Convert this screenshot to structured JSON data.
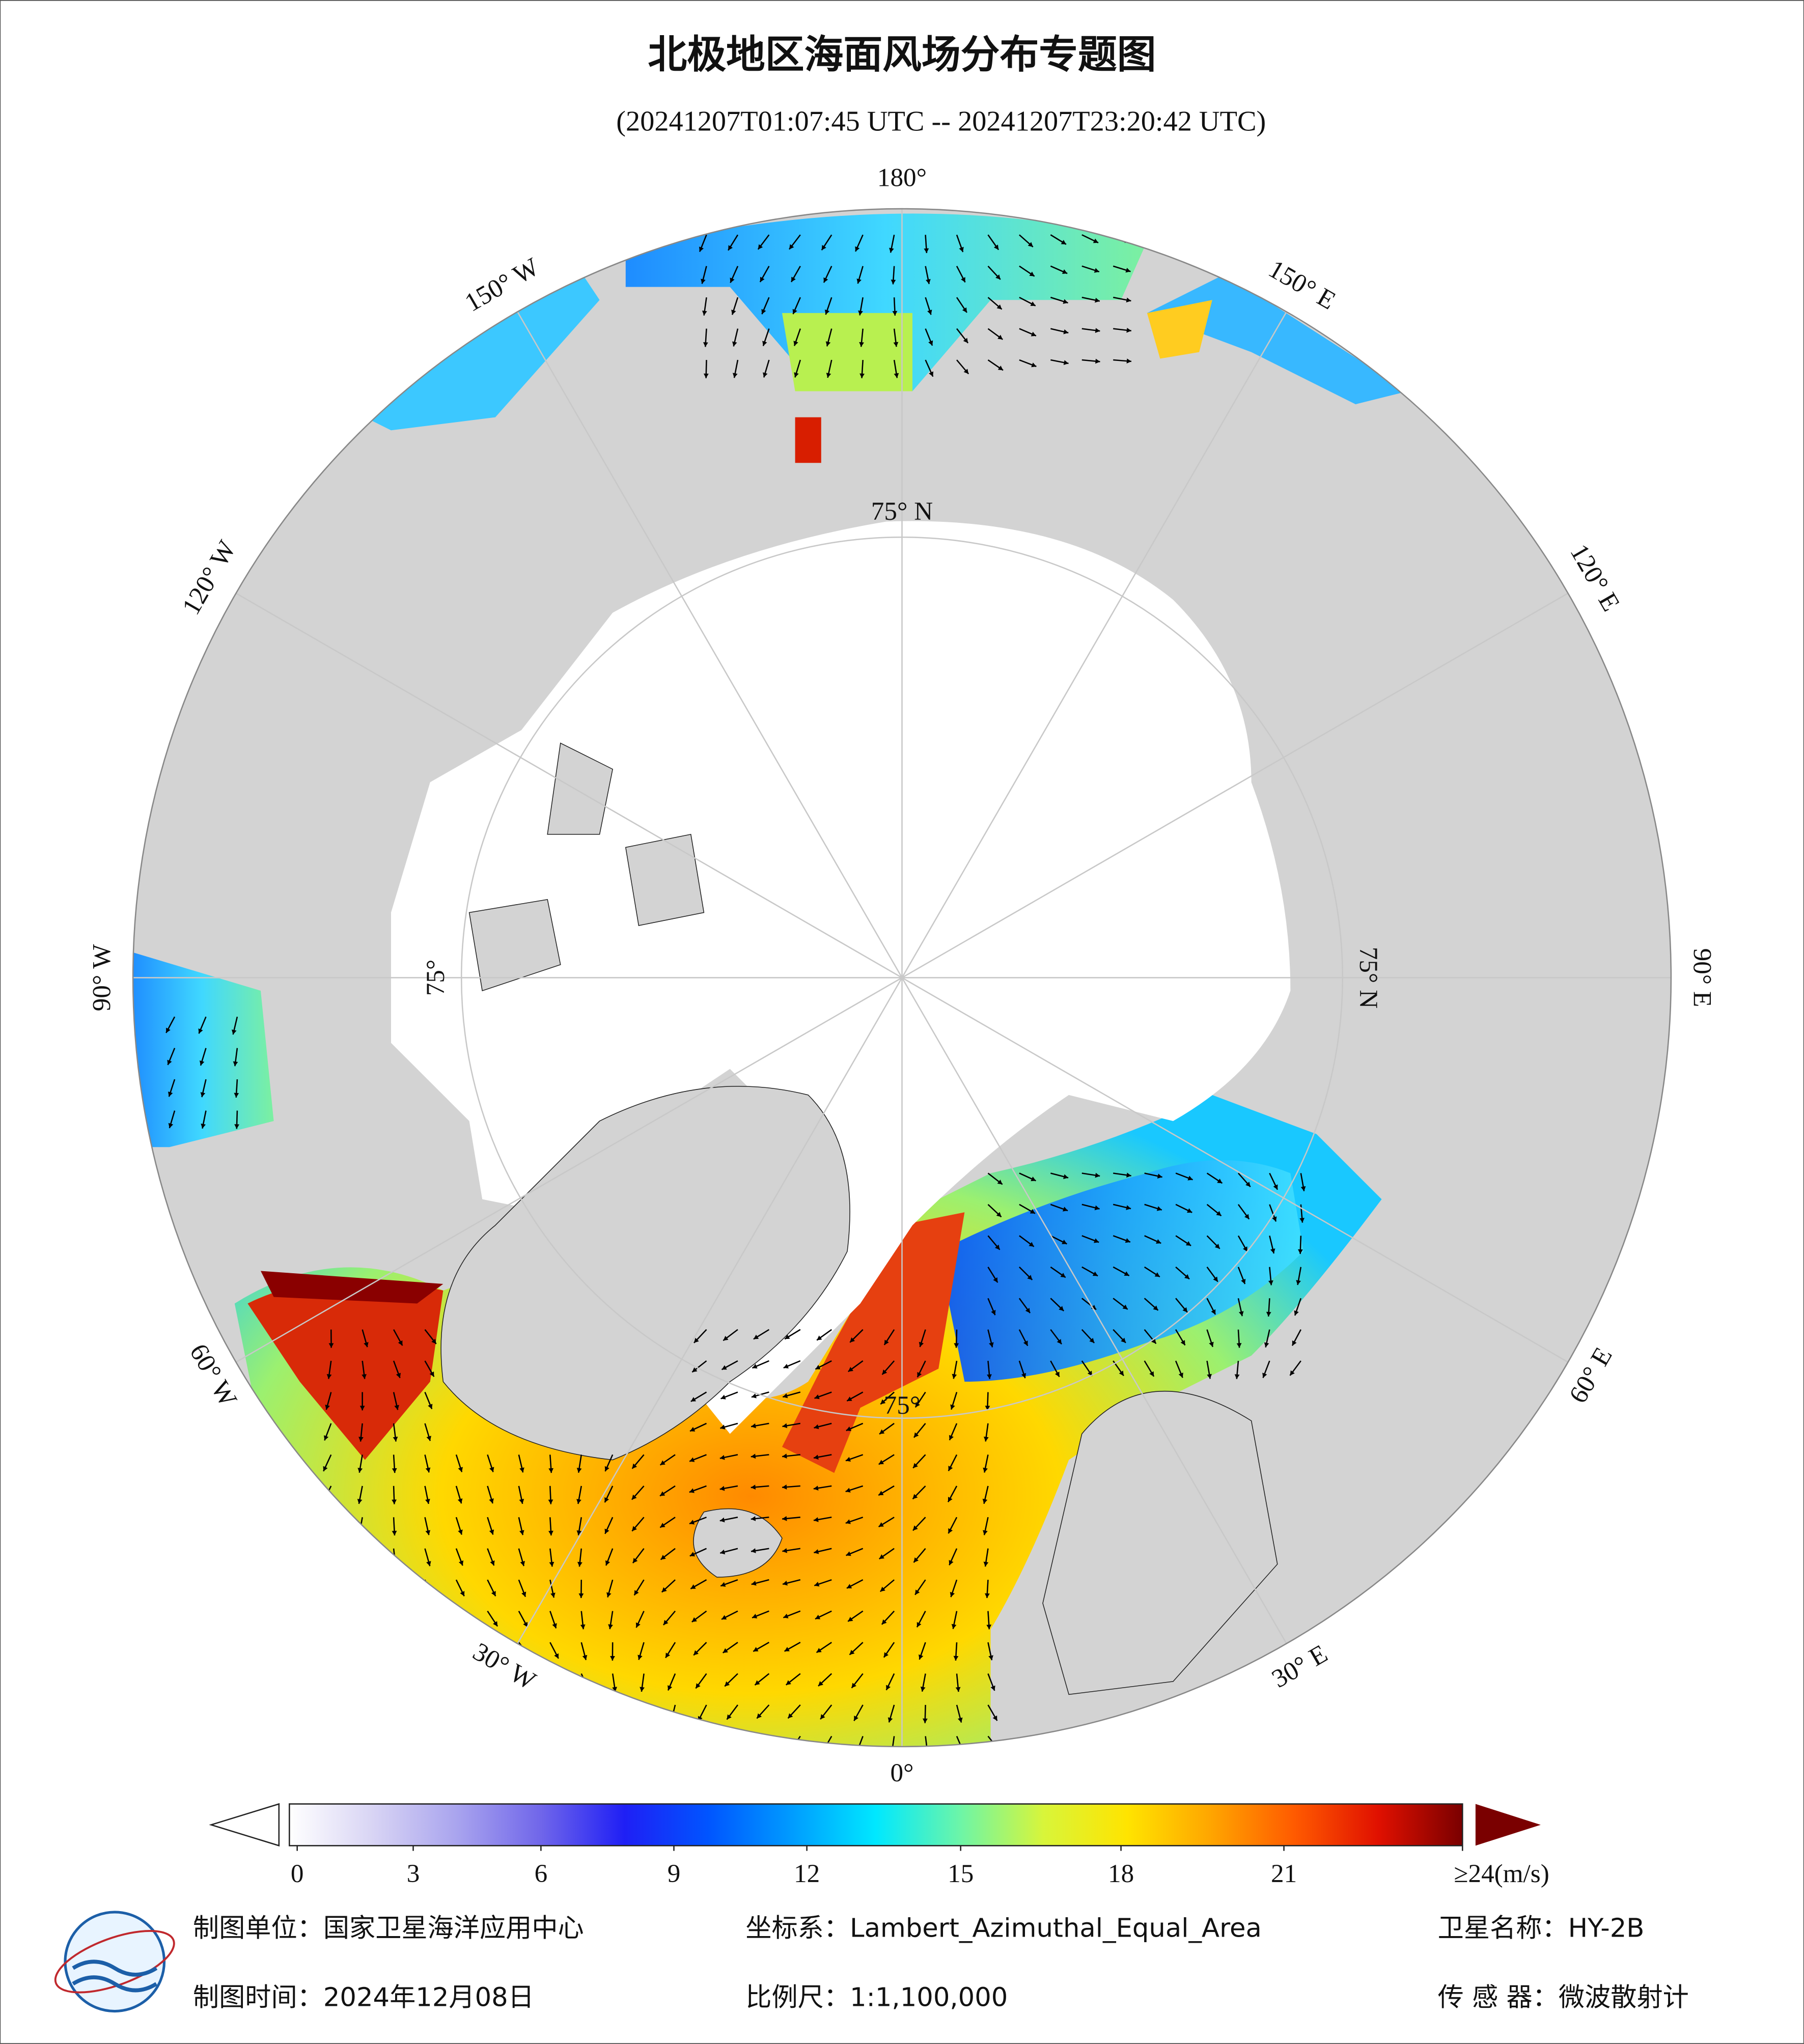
{
  "header": {
    "title": "北极地区海面风场分布专题图",
    "subtitle": "(20241207T01:07:45 UTC -- 20241207T23:20:42 UTC)"
  },
  "map": {
    "meridian_labels": [
      "0°",
      "30° E",
      "60° E",
      "90° E",
      "120° E",
      "150° E",
      "180°",
      "150° W",
      "120° W",
      "90° W",
      "60° W",
      "30° W"
    ],
    "parallel_labels": [
      "75° N",
      "75° N",
      "75°",
      "75°"
    ]
  },
  "colorbar": {
    "ticks": [
      0,
      3,
      6,
      9,
      12,
      15,
      18,
      21,
      {
        "value": 24,
        "label": "≥24(m/s)"
      }
    ],
    "colors": [
      "#ffffff",
      "#d8d4f4",
      "#a9a4ee",
      "#7066ea",
      "#1f1ff5",
      "#0055ff",
      "#009cff",
      "#00e8ff",
      "#6cf5a8",
      "#d8f53a",
      "#ffe400",
      "#ffa500",
      "#ff5a00",
      "#e01000",
      "#7a0000"
    ]
  },
  "footer": {
    "unit": "制图单位：国家卫星海洋应用中心",
    "crs": "坐标系：Lambert_Azimuthal_Equal_Area",
    "satellite": "卫星名称：HY-2B",
    "date": "制图时间：2024年12月08日",
    "scale": "比例尺：1:1,100,000",
    "sensor": "传 感 器：微波散射计"
  }
}
